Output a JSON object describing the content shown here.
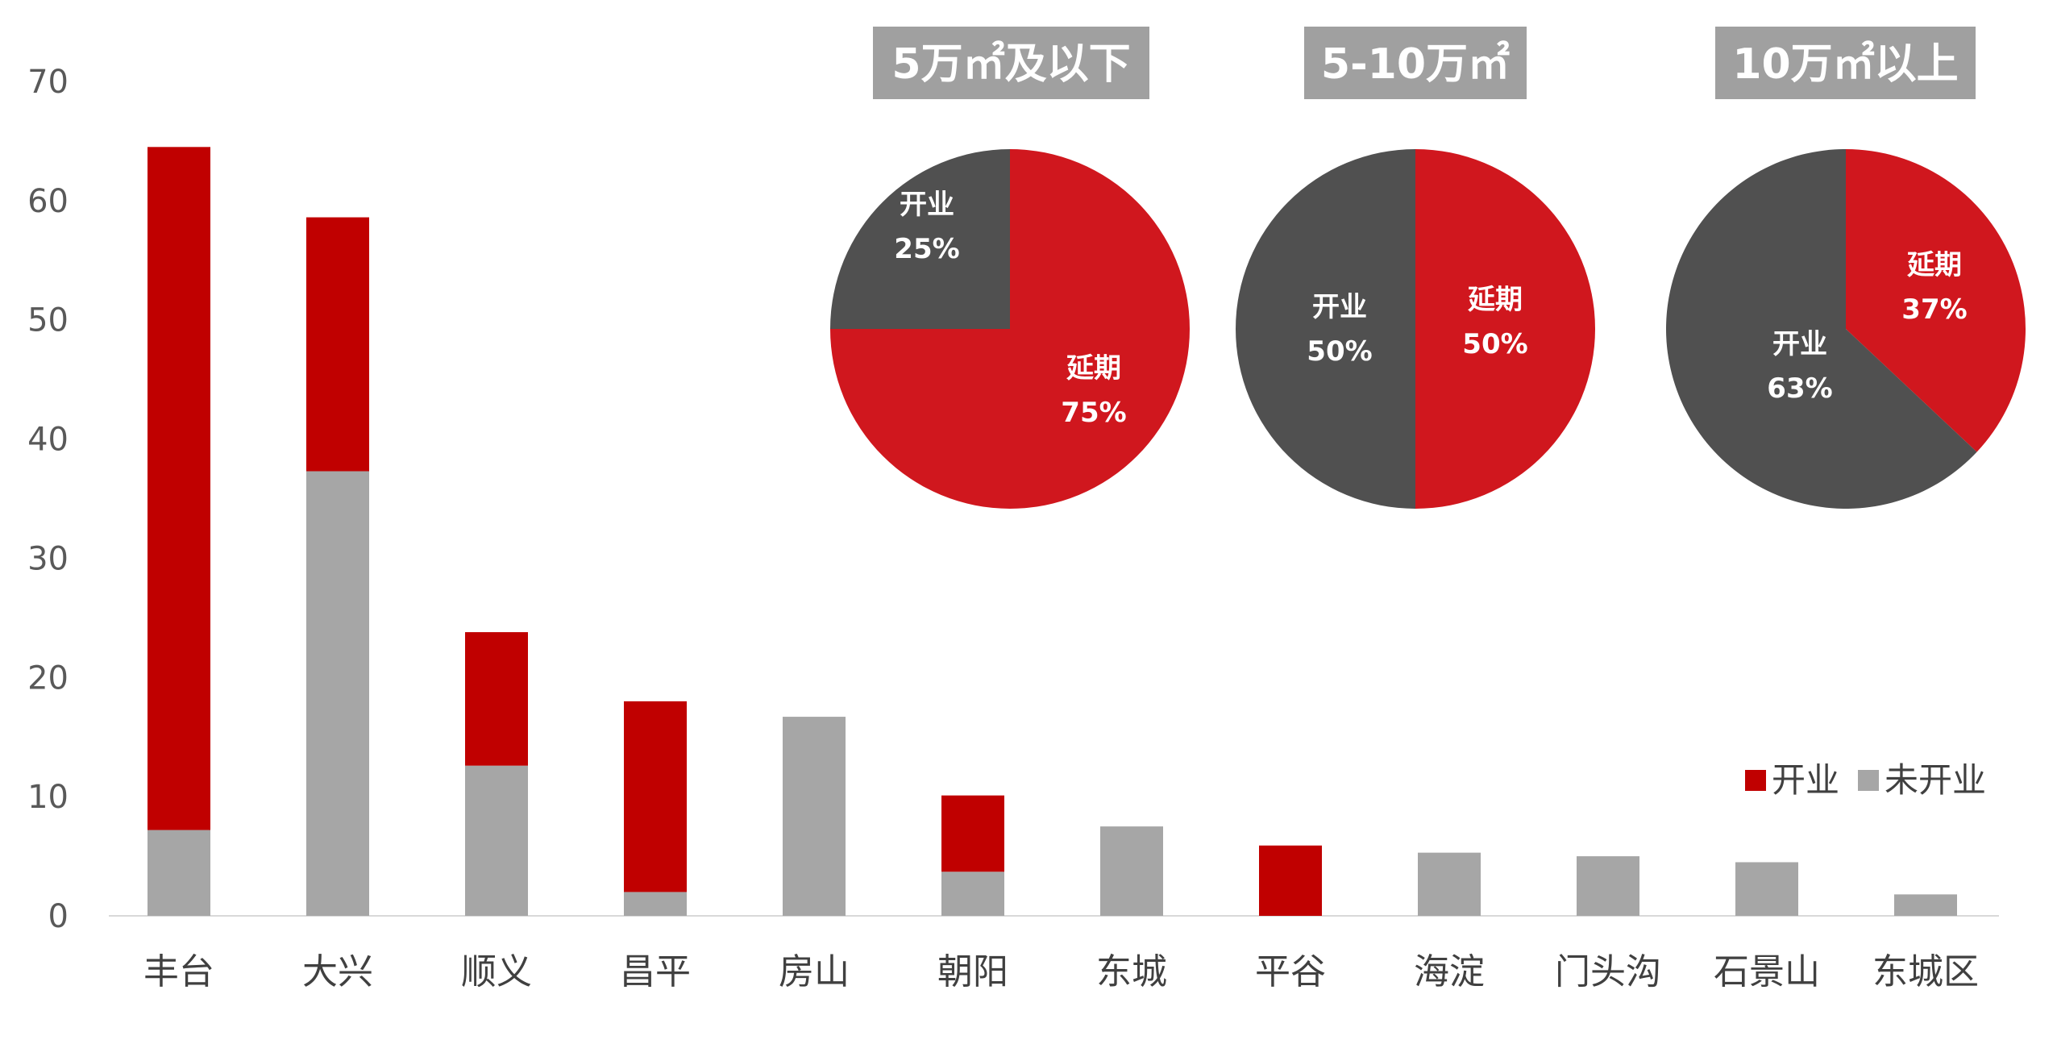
{
  "chart_data": [
    {
      "type": "bar",
      "stacked": true,
      "categories": [
        "丰台",
        "大兴",
        "顺义",
        "昌平",
        "房山",
        "朝阳",
        "东城",
        "平谷",
        "海淀",
        "门头沟",
        "石景山",
        "东城区"
      ],
      "series": [
        {
          "name": "未开业",
          "color": "#a6a6a6",
          "values": [
            7.2,
            37.3,
            12.6,
            2.0,
            16.7,
            3.7,
            7.5,
            0,
            5.3,
            5.0,
            4.5,
            1.8
          ]
        },
        {
          "name": "开业",
          "color": "#c00000",
          "values": [
            57.3,
            21.3,
            11.2,
            16.0,
            0,
            6.4,
            0,
            5.9,
            0,
            0,
            0,
            0
          ]
        }
      ],
      "ylim": [
        0,
        70
      ],
      "yticks": [
        "0",
        "10",
        "20",
        "30",
        "40",
        "50",
        "60",
        "70"
      ],
      "legend": [
        "开业",
        "未开业"
      ],
      "legend_position": "right"
    },
    {
      "type": "pie",
      "title": "5万㎡及以下",
      "slices": [
        {
          "name": "开业",
          "value": 25,
          "label_name": "开业",
          "label_pct": "25%",
          "color": "#505050"
        },
        {
          "name": "延期",
          "value": 75,
          "label_name": "延期",
          "label_pct": "75%",
          "color": "#d0171e"
        }
      ]
    },
    {
      "type": "pie",
      "title": "5-10万㎡",
      "slices": [
        {
          "name": "延期",
          "value": 50,
          "label_name": "延期",
          "label_pct": "50%",
          "color": "#d0171e"
        },
        {
          "name": "开业",
          "value": 50,
          "label_name": "开业",
          "label_pct": "50%",
          "color": "#505050"
        }
      ]
    },
    {
      "type": "pie",
      "title": "10万㎡以上",
      "slices": [
        {
          "name": "延期",
          "value": 37,
          "label_name": "延期",
          "label_pct": "37%",
          "color": "#d0171e"
        },
        {
          "name": "开业",
          "value": 63,
          "label_name": "开业",
          "label_pct": "63%",
          "color": "#505050"
        }
      ]
    }
  ],
  "colors": {
    "opened": "#c00000",
    "not_opened": "#a6a6a6",
    "pie_red": "#d0171e",
    "pie_dark": "#505050",
    "title_box": "#a0a0a0",
    "axis": "#d9d9d9"
  }
}
